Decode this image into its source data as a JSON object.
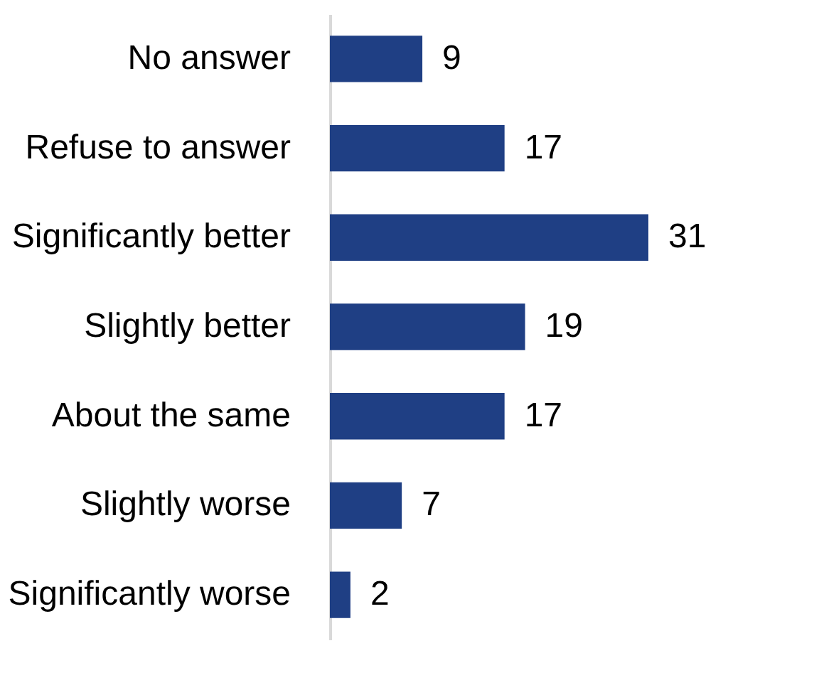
{
  "chart_data": {
    "type": "bar",
    "orientation": "horizontal",
    "categories": [
      "No answer",
      "Refuse to answer",
      "Significantly better",
      "Slightly better",
      "About the same",
      "Slightly worse",
      "Significantly worse"
    ],
    "values": [
      9,
      17,
      31,
      19,
      17,
      7,
      2
    ],
    "color": "#1f3f84",
    "data_labels": true
  }
}
